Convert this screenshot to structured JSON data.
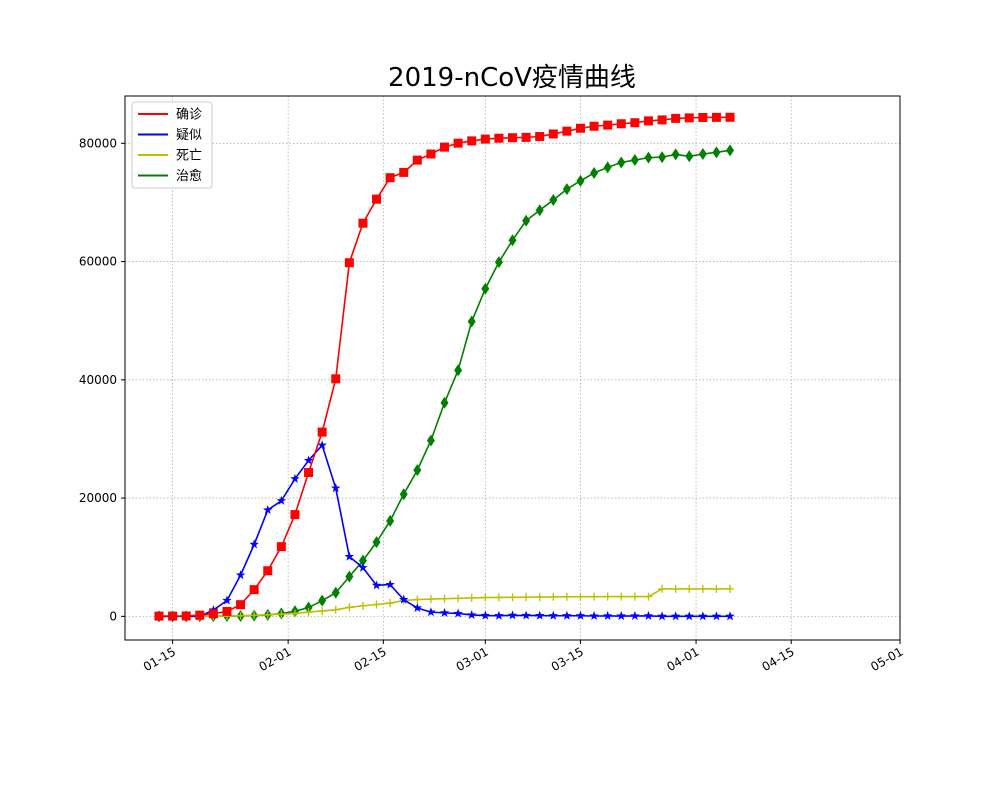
{
  "chart_data": {
    "type": "line",
    "title": "2019-nCoV疫情曲线",
    "xlabel": "",
    "ylabel": "",
    "x_start": "2020-01-13",
    "x_step_days": 2,
    "xlim": [
      "2020-01-08",
      "2020-05-01"
    ],
    "ylim": [
      -4000,
      88000
    ],
    "x_ticks": [
      "01-15",
      "02-01",
      "02-15",
      "03-01",
      "03-15",
      "04-01",
      "04-15",
      "05-01"
    ],
    "x_tick_dates": [
      "2020-01-15",
      "2020-02-01",
      "2020-02-15",
      "2020-03-01",
      "2020-03-15",
      "2020-04-01",
      "2020-04-15",
      "2020-05-01"
    ],
    "y_ticks": [
      0,
      20000,
      40000,
      60000,
      80000
    ],
    "y_tick_labels": [
      "0",
      "20000",
      "40000",
      "60000",
      "80000"
    ],
    "grid": true,
    "legend_position": "top-left",
    "series": [
      {
        "name": "确诊",
        "color": "#ff0000",
        "marker": "square",
        "values": [
          41,
          45,
          62,
          198,
          440,
          830,
          1975,
          4515,
          7711,
          11791,
          17205,
          24324,
          31161,
          40171,
          59804,
          66492,
          70548,
          74185,
          75077,
          77150,
          78190,
          79356,
          80026,
          80409,
          80711,
          80860,
          80945,
          81003,
          81150,
          81580,
          82052,
          82545,
          82883,
          83075,
          83305,
          83484,
          83796,
          83958,
          84214,
          84300,
          84369,
          84385,
          84400
        ]
      },
      {
        "name": "疑似",
        "color": "#0000ff",
        "marker": "star",
        "values": [
          0,
          0,
          0,
          0,
          1072,
          2684,
          6973,
          12167,
          17988,
          19544,
          23260,
          26359,
          28942,
          21675,
          10109,
          8228,
          5248,
          5365,
          2824,
          1418,
          715,
          587,
          482,
          237,
          140,
          107,
          166,
          150,
          130,
          100,
          110,
          100,
          60,
          70,
          50,
          70,
          72,
          10,
          10,
          10,
          10,
          10,
          10
        ]
      },
      {
        "name": "死亡",
        "color": "#bfbf00",
        "marker": "plus",
        "values": [
          1,
          2,
          3,
          4,
          25,
          56,
          106,
          170,
          259,
          362,
          490,
          724,
          908,
          1113,
          1523,
          1770,
          2004,
          2247,
          2666,
          2838,
          2915,
          2981,
          3045,
          3120,
          3176,
          3199,
          3226,
          3249,
          3261,
          3287,
          3305,
          3318,
          3329,
          3339,
          3342,
          3345,
          3346,
          4636,
          4642,
          4643,
          4643,
          4643,
          4643
        ]
      },
      {
        "name": "治愈",
        "color": "#008000",
        "marker": "diamond",
        "values": [
          0,
          0,
          0,
          17,
          34,
          49,
          60,
          126,
          243,
          475,
          852,
          1487,
          2649,
          3996,
          6723,
          9419,
          12552,
          16155,
          20659,
          24734,
          29745,
          36117,
          41625,
          49856,
          55404,
          59897,
          63612,
          66911,
          68679,
          70420,
          72244,
          73650,
          74978,
          75923,
          76751,
          77167,
          77575,
          77663,
          78120,
          77808,
          78185,
          78470,
          78810
        ]
      }
    ]
  }
}
